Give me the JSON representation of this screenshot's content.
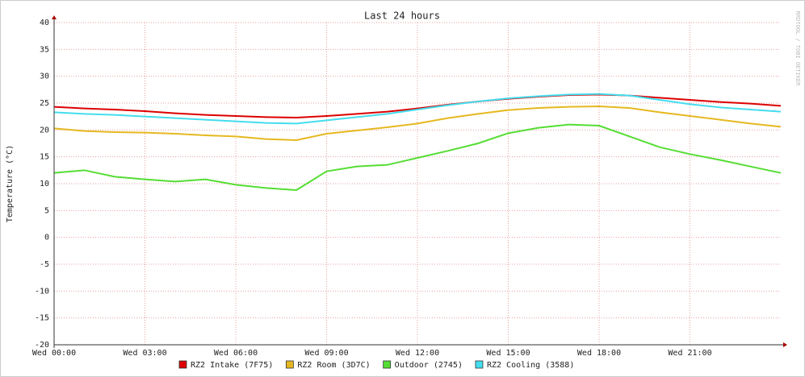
{
  "chart_data": {
    "type": "line",
    "title": "Last 24 hours",
    "ylabel": "Temperature (°C)",
    "watermark": "RRDTOOL / TOBI OETIKER",
    "x": [
      0,
      1,
      2,
      3,
      4,
      5,
      6,
      7,
      8,
      9,
      10,
      11,
      12,
      13,
      14,
      15,
      16,
      17,
      18,
      19,
      20,
      21,
      22,
      23,
      24
    ],
    "xlim": [
      0,
      24
    ],
    "xticks": [
      {
        "value": 0,
        "label": "Wed 00:00"
      },
      {
        "value": 3,
        "label": "Wed 03:00"
      },
      {
        "value": 6,
        "label": "Wed 06:00"
      },
      {
        "value": 9,
        "label": "Wed 09:00"
      },
      {
        "value": 12,
        "label": "Wed 12:00"
      },
      {
        "value": 15,
        "label": "Wed 15:00"
      },
      {
        "value": 18,
        "label": "Wed 18:00"
      },
      {
        "value": 21,
        "label": "Wed 21:00"
      }
    ],
    "ylim": [
      -20,
      40
    ],
    "yticks": [
      -20,
      -15,
      -10,
      -5,
      0,
      5,
      10,
      15,
      20,
      25,
      30,
      35,
      40
    ],
    "grid": true,
    "series": [
      {
        "name": "RZ2 Intake (7F75)",
        "color": "#dd0000",
        "values": [
          24.3,
          24.0,
          23.8,
          23.5,
          23.1,
          22.8,
          22.6,
          22.4,
          22.3,
          22.6,
          23.0,
          23.4,
          24.0,
          24.7,
          25.3,
          25.8,
          26.2,
          26.5,
          26.6,
          26.4,
          26.0,
          25.6,
          25.2,
          24.9,
          24.5
        ]
      },
      {
        "name": "RZ2 Room (3D7C)",
        "color": "#e6b820",
        "values": [
          20.3,
          19.8,
          19.6,
          19.5,
          19.3,
          19.0,
          18.8,
          18.3,
          18.1,
          19.3,
          19.9,
          20.5,
          21.2,
          22.2,
          23.0,
          23.7,
          24.1,
          24.3,
          24.4,
          24.1,
          23.3,
          22.6,
          21.9,
          21.2,
          20.6
        ]
      },
      {
        "name": "Outdoor (2745)",
        "color": "#55dd33",
        "values": [
          12.0,
          12.5,
          11.3,
          10.8,
          10.4,
          10.8,
          9.8,
          9.2,
          8.8,
          12.3,
          13.2,
          13.5,
          14.8,
          16.1,
          17.5,
          19.4,
          20.4,
          21.0,
          20.8,
          18.8,
          16.8,
          15.5,
          14.4,
          13.2,
          12.0
        ]
      },
      {
        "name": "RZ2 Cooling (3588)",
        "color": "#44ddee",
        "values": [
          23.3,
          23.0,
          22.8,
          22.5,
          22.2,
          21.9,
          21.6,
          21.3,
          21.2,
          21.8,
          22.4,
          23.0,
          23.8,
          24.6,
          25.3,
          25.9,
          26.3,
          26.6,
          26.7,
          26.4,
          25.6,
          24.8,
          24.2,
          23.8,
          23.4
        ]
      }
    ]
  }
}
